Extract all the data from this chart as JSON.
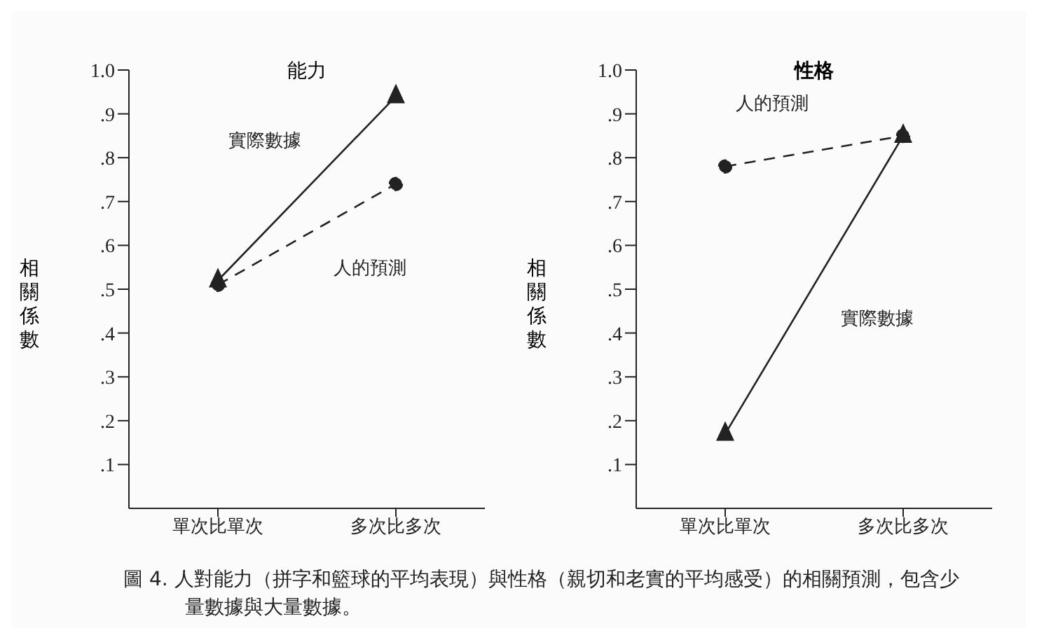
{
  "chart_data": [
    {
      "type": "line",
      "title": "能力",
      "ylabel": "相關係數",
      "categories": [
        "單次比單次",
        "多次比多次"
      ],
      "series": [
        {
          "name": "實際數據",
          "color": "#222222",
          "values": [
            0.52,
            0.94
          ],
          "marker": "triangle",
          "line_style": "solid"
        },
        {
          "name": "人的預測",
          "color": "#222222",
          "values": [
            0.51,
            0.74
          ],
          "marker": "circle",
          "line_style": "dashed"
        }
      ],
      "ylim": [
        0,
        1
      ],
      "yticks": [
        {
          "value": 0.1,
          "label": ".1"
        },
        {
          "value": 0.2,
          "label": ".2"
        },
        {
          "value": 0.3,
          "label": ".3"
        },
        {
          "value": 0.4,
          "label": ".4"
        },
        {
          "value": 0.5,
          "label": ".5"
        },
        {
          "value": 0.6,
          "label": ".6"
        },
        {
          "value": 0.7,
          "label": ".7"
        },
        {
          "value": 0.8,
          "label": ".8"
        },
        {
          "value": 0.9,
          "label": ".9"
        },
        {
          "value": 1,
          "label": "1.0"
        }
      ],
      "grid": false,
      "legend": false,
      "annotations": [
        "圖 4.  人對能力（拼字和籃球的平均表現）與性格（親切和老實的平均感受）的相關預測，包含少量數據與大量數據。"
      ]
    },
    {
      "type": "line",
      "title": "性格",
      "ylabel": "相關係數",
      "categories": [
        "單次比單次",
        "多次比多次"
      ],
      "series": [
        {
          "name": "人的預測",
          "color": "#222222",
          "values": [
            0.78,
            0.85
          ],
          "marker": "circle",
          "line_style": "dashed"
        },
        {
          "name": "實際數據",
          "color": "#222222",
          "values": [
            0.17,
            0.85
          ],
          "marker": "triangle",
          "line_style": "solid"
        }
      ],
      "ylim": [
        0,
        1
      ],
      "yticks": [
        {
          "value": 0.1,
          "label": ".1"
        },
        {
          "value": 0.2,
          "label": ".2"
        },
        {
          "value": 0.3,
          "label": ".3"
        },
        {
          "value": 0.4,
          "label": ".4"
        },
        {
          "value": 0.5,
          "label": ".5"
        },
        {
          "value": 0.6,
          "label": ".6"
        },
        {
          "value": 0.7,
          "label": ".7"
        },
        {
          "value": 0.8,
          "label": ".8"
        },
        {
          "value": 0.9,
          "label": ".9"
        },
        {
          "value": 1,
          "label": "1.0"
        }
      ],
      "grid": false,
      "legend": false
    }
  ]
}
